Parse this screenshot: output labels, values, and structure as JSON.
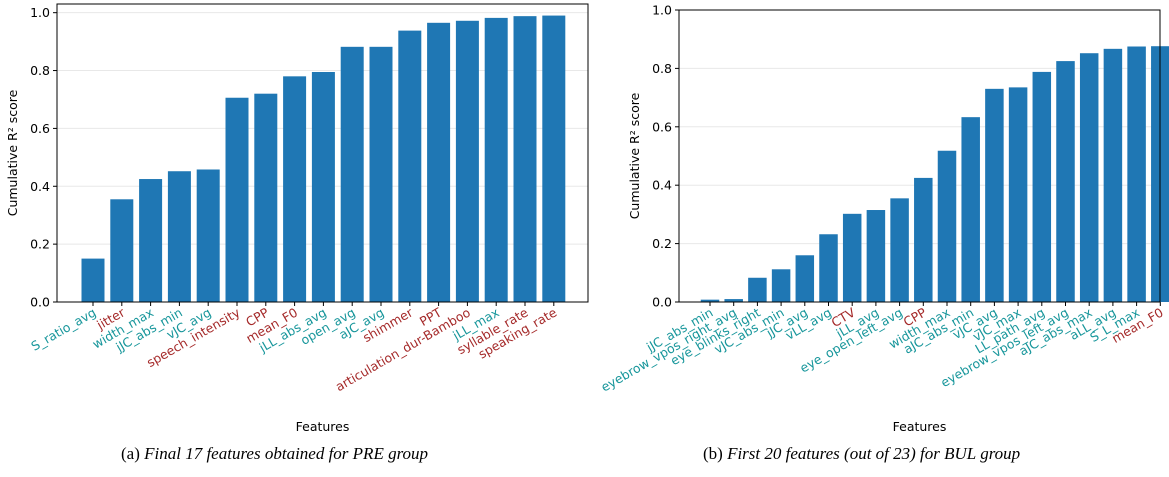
{
  "colors": {
    "bar": "#1f77b4",
    "label_teal": "#17969b",
    "label_red": "#a52a2a",
    "axis": "#000000",
    "grid": "#e8e8e8"
  },
  "captions": [
    {
      "label": "(a)",
      "text": "Final 17 features obtained for PRE group"
    },
    {
      "label": "(b)",
      "text": "First 20 features (out of 23) for BUL group"
    }
  ],
  "chart_data": [
    {
      "type": "bar",
      "title": "",
      "xlabel": "Features",
      "ylabel": "Cumulative R² score",
      "ylim": [
        0,
        1.03
      ],
      "yticks": [
        "0.0",
        "0.2",
        "0.4",
        "0.6",
        "0.8",
        "1.0"
      ],
      "grid": "horizontal, light",
      "categories": [
        "S_ratio_avg",
        "jitter",
        "width_max",
        "jJC_abs_min",
        "vJC_avg",
        "speech_intensity",
        "CPP",
        "mean_F0",
        "jLL_abs_avg",
        "open_avg",
        "aJC_avg",
        "shimmer",
        "PPT",
        "articulation_dur-Bamboo",
        "jLL_max",
        "syllable_rate",
        "speaking_rate"
      ],
      "label_groups": [
        "teal",
        "red",
        "teal",
        "teal",
        "teal",
        "red",
        "red",
        "red",
        "teal",
        "teal",
        "teal",
        "red",
        "red",
        "red",
        "teal",
        "red",
        "red"
      ],
      "values": [
        0.15,
        0.355,
        0.425,
        0.452,
        0.458,
        0.706,
        0.72,
        0.78,
        0.795,
        0.882,
        0.882,
        0.938,
        0.965,
        0.972,
        0.982,
        0.988,
        0.99
      ]
    },
    {
      "type": "bar",
      "title": "",
      "xlabel": "Features",
      "ylabel": "Cumulative R² score",
      "ylim": [
        0,
        1.0
      ],
      "yticks": [
        "0.0",
        "0.2",
        "0.4",
        "0.6",
        "0.8",
        "1.0"
      ],
      "grid": "horizontal, light",
      "categories": [
        "jJC_abs_min",
        "eyebrow_vpos_right_avg",
        "eye_blinks_right",
        "vJC_abs_min",
        "jJC_avg",
        "vLL_avg",
        "CTV",
        "jLL_avg",
        "eye_open_left_avg",
        "CPP",
        "width_max",
        "aJC_abs_min",
        "vJC_avg",
        "vJC_max",
        "LL_path_avg",
        "eyebrow_vpos_left_avg",
        "aJC_abs_max",
        "aLL_avg",
        "S_L_max",
        "mean_F0"
      ],
      "label_groups": [
        "teal",
        "teal",
        "teal",
        "teal",
        "teal",
        "teal",
        "red",
        "teal",
        "teal",
        "red",
        "teal",
        "teal",
        "teal",
        "teal",
        "teal",
        "teal",
        "teal",
        "teal",
        "teal",
        "red"
      ],
      "values": [
        0.008,
        0.01,
        0.083,
        0.112,
        0.16,
        0.232,
        0.302,
        0.315,
        0.355,
        0.425,
        0.518,
        0.633,
        0.73,
        0.735,
        0.788,
        0.825,
        0.852,
        0.867,
        0.875,
        0.876
      ]
    }
  ]
}
